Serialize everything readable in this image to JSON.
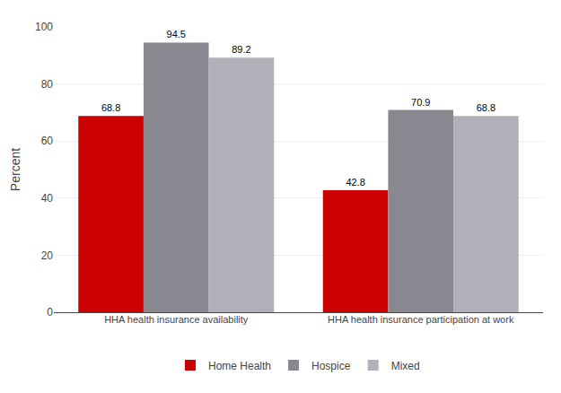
{
  "chart_data": {
    "type": "bar",
    "categories": [
      "HHA health insurance availability",
      "HHA health insurance participation at work"
    ],
    "series": [
      {
        "name": "Home Health",
        "color": "#cc0000",
        "values": [
          68.8,
          42.8
        ]
      },
      {
        "name": "Hospice",
        "color": "#888890",
        "values": [
          94.5,
          70.9
        ]
      },
      {
        "name": "Mixed",
        "color": "#b0b0b8",
        "values": [
          89.2,
          68.8
        ]
      }
    ],
    "ylabel": "Percent",
    "ylim": [
      0,
      100
    ],
    "yticks": [
      0,
      20,
      40,
      60,
      80,
      100
    ],
    "grid": true,
    "legend": "bottom",
    "data_labels": true
  }
}
